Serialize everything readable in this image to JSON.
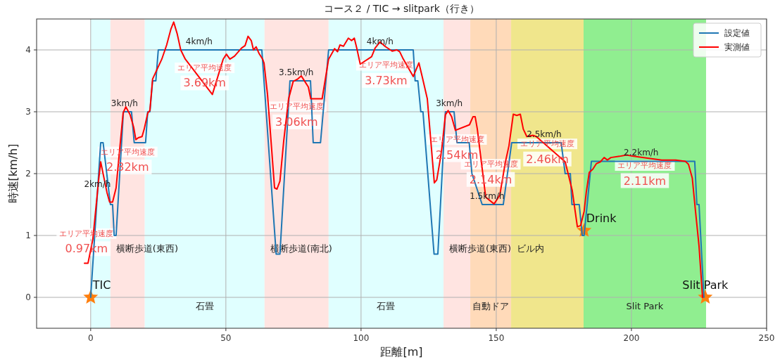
{
  "chart_data": {
    "type": "line",
    "title": "コース２ / TIC → slitpark（行き）",
    "xlabel": "距離[m]",
    "ylabel": "時速[km/h]",
    "xlim": [
      -20,
      250
    ],
    "ylim": [
      -0.5,
      4.5
    ],
    "xticks": [
      0,
      50,
      100,
      150,
      200,
      250
    ],
    "yticks": [
      0,
      1,
      2,
      3,
      4
    ],
    "grid": true,
    "legend": "top right",
    "series": [
      {
        "name": "設定値",
        "color": "#1f77b4",
        "x": [
          0,
          3.7,
          4.6,
          7.3,
          8.1,
          8.7,
          9.4,
          12.1,
          15.1,
          16.1,
          20.3,
          21.1,
          21.9,
          22.9,
          24.1,
          25,
          63.3,
          68.6,
          70,
          73.7,
          81.3,
          82.3,
          85,
          88,
          119.3,
          120,
          121,
          122.1,
          122.9,
          127,
          128.4,
          131.2,
          134.4,
          135.5,
          140,
          141,
          144.8,
          152.6,
          155.7,
          174,
          175.5,
          177.4,
          178,
          180.7,
          181.8,
          182.5,
          185.2,
          223.4,
          224.2,
          225,
          226.8
        ],
        "values": [
          0,
          2.5,
          2.5,
          1.5,
          1.5,
          1,
          1,
          3,
          3,
          2.5,
          2.5,
          3,
          3,
          3.5,
          3.5,
          4,
          4,
          0.7,
          0.7,
          3.5,
          3.5,
          2.5,
          2.5,
          4,
          4,
          3.5,
          3.5,
          3,
          3,
          0.7,
          0.7,
          3,
          3,
          2.5,
          2.5,
          2,
          1.5,
          1.5,
          2.5,
          2.5,
          2,
          2,
          1.5,
          1.5,
          1,
          1,
          2.2,
          2.2,
          1.5,
          1.5,
          0
        ]
      },
      {
        "name": "実測値",
        "color": "#ff0000",
        "x": [
          -2.3,
          -1,
          0.8,
          2.9,
          3.7,
          6,
          7,
          8.1,
          9.4,
          10.7,
          12,
          13,
          14.6,
          15.9,
          16.7,
          17.6,
          19,
          19.8,
          21.1,
          21.9,
          22.9,
          26.3,
          28.1,
          29.7,
          30.7,
          32,
          33.3,
          35,
          45,
          49,
          50.2,
          51.5,
          53.2,
          55.8,
          57.1,
          58.2,
          59.4,
          60.2,
          61.2,
          62.3,
          63.6,
          64.1,
          65.4,
          66.7,
          68,
          68.9,
          70,
          71.4,
          73.2,
          74.9,
          76.6,
          77.9,
          79.2,
          80.5,
          81.4,
          85.6,
          88,
          90.2,
          91.3,
          92.2,
          93.5,
          95.3,
          96.5,
          97.5,
          98.4,
          99.7,
          103.9,
          105.2,
          107,
          108.8,
          111.5,
          113.2,
          114.3,
          115.4,
          119.3,
          121.4,
          122.7,
          124.5,
          125.8,
          127.1,
          128,
          129.7,
          131.2,
          132.2,
          133.5,
          134.9,
          140.1,
          141.4,
          142.2,
          143,
          146.1,
          149.2,
          151.3,
          153.4,
          154.7,
          156.3,
          157.6,
          158.9,
          160,
          161.3,
          163.5,
          164.8,
          175.5,
          176.8,
          178.1,
          180,
          181.2,
          182.5,
          183.3,
          184.4,
          185.7,
          187,
          188.5,
          189.9,
          191.1,
          192.4,
          195.6,
          198.2,
          200.8,
          211.2,
          216.4,
          219.9,
          221.1,
          222.5,
          223.7,
          225,
          226.3
        ],
        "values": [
          0.55,
          0.55,
          0.94,
          1.88,
          2.19,
          1.7,
          1.54,
          1.54,
          1.77,
          2.38,
          2.98,
          3.08,
          2.95,
          2.75,
          2.55,
          2.58,
          2.6,
          2.72,
          2.98,
          3.02,
          3.53,
          3.85,
          4.08,
          4.34,
          4.45,
          4.26,
          4,
          3.85,
          3.28,
          3.85,
          3.93,
          3.85,
          3.9,
          4.03,
          4.07,
          4.22,
          4.15,
          4,
          4.05,
          3.94,
          3.85,
          3.79,
          3.28,
          2.53,
          1.77,
          1.75,
          1.88,
          2.53,
          3.21,
          3.49,
          3.53,
          3.58,
          3.49,
          3.4,
          3.21,
          3.21,
          3.85,
          4.02,
          3.97,
          4.08,
          4.06,
          4.19,
          4.15,
          4.19,
          4.03,
          3.77,
          3.89,
          4.03,
          4.13,
          4.06,
          3.98,
          4,
          3.97,
          3.87,
          3.57,
          3.79,
          3.55,
          3.21,
          2.53,
          1.85,
          1.9,
          2.34,
          2.95,
          3.02,
          2.92,
          2.7,
          2.79,
          2.92,
          2.92,
          2.72,
          1.62,
          1.51,
          1.65,
          2.19,
          2.45,
          2.96,
          2.94,
          2.96,
          2.72,
          2.6,
          2.62,
          2.6,
          2.19,
          1.96,
          1.73,
          1.14,
          1.16,
          1.39,
          1.7,
          2.02,
          2.07,
          2.16,
          2.19,
          2.26,
          2.22,
          2.26,
          2.28,
          2.3,
          2.28,
          2.22,
          2.22,
          2.2,
          2.15,
          1.93,
          1.39,
          0.83,
          0
        ]
      },
      {
        "type": "scatter",
        "marker": "star",
        "color": "#ff7f0e",
        "x": [
          0,
          182.5,
          227.3
        ],
        "values": [
          0,
          1.08,
          0
        ]
      }
    ],
    "bands": [
      {
        "axis": "x",
        "from": 0,
        "to": 7.3,
        "color": "#e0ffff"
      },
      {
        "axis": "x",
        "from": 7.3,
        "to": 20,
        "color": "#ffe4e1",
        "label": "横断歩道(東西)"
      },
      {
        "axis": "x",
        "from": 20,
        "to": 64.3,
        "color": "#e0ffff",
        "label": "石畳"
      },
      {
        "axis": "x",
        "from": 64.3,
        "to": 88,
        "color": "#ffe4e1",
        "label": "横断歩道(南北)"
      },
      {
        "axis": "x",
        "from": 88,
        "to": 130.5,
        "color": "#e0ffff",
        "label": "石畳"
      },
      {
        "axis": "x",
        "from": 130.5,
        "to": 140.4,
        "color": "#ffe4e1",
        "label": "横断歩道(東西)"
      },
      {
        "axis": "x",
        "from": 140.4,
        "to": 155.5,
        "color": "#ffdab9",
        "label": "自動ドア"
      },
      {
        "axis": "x",
        "from": 155.5,
        "to": 182.3,
        "color": "#f0e68c",
        "label": "ビル内"
      },
      {
        "axis": "x",
        "from": 182.3,
        "to": 227.6,
        "color": "#90ee90",
        "label": "Slit Park"
      }
    ],
    "annotations": [
      {
        "text": "TIC",
        "x": 0,
        "y": 0
      },
      {
        "text": "Drink",
        "x": 182.5,
        "y": 1.08
      },
      {
        "text": "Slit Park",
        "x": 227.3,
        "y": 0
      },
      {
        "text": "2km/h",
        "x": 2.5,
        "y": 1.69
      },
      {
        "text": "3km/h",
        "x": 12.5,
        "y": 3
      },
      {
        "text": "4km/h",
        "x": 40.1,
        "y": 4
      },
      {
        "text": "3.5km/h",
        "x": 76,
        "y": 3.5
      },
      {
        "text": "4km/h",
        "x": 107,
        "y": 4
      },
      {
        "text": "3km/h",
        "x": 132.6,
        "y": 3
      },
      {
        "text": "1.5km/h",
        "x": 146.6,
        "y": 1.5
      },
      {
        "text": "2.5km/h",
        "x": 167.7,
        "y": 2.5
      },
      {
        "text": "2.2km/h",
        "x": 203.6,
        "y": 2.2
      },
      "エリア平均速度",
      "0.97km",
      "エリア平均速度",
      "2.32km",
      "エリア平均速度",
      "3.69km",
      "エリア平均速度",
      "3.06km",
      "エリア平均速度",
      "3.73km",
      "エリア平均速度",
      "2.54km",
      "エリア平均速度",
      "2.14km",
      "エリア平均速度",
      "2.46km",
      "エリア平均速度",
      "2.11km"
    ]
  }
}
